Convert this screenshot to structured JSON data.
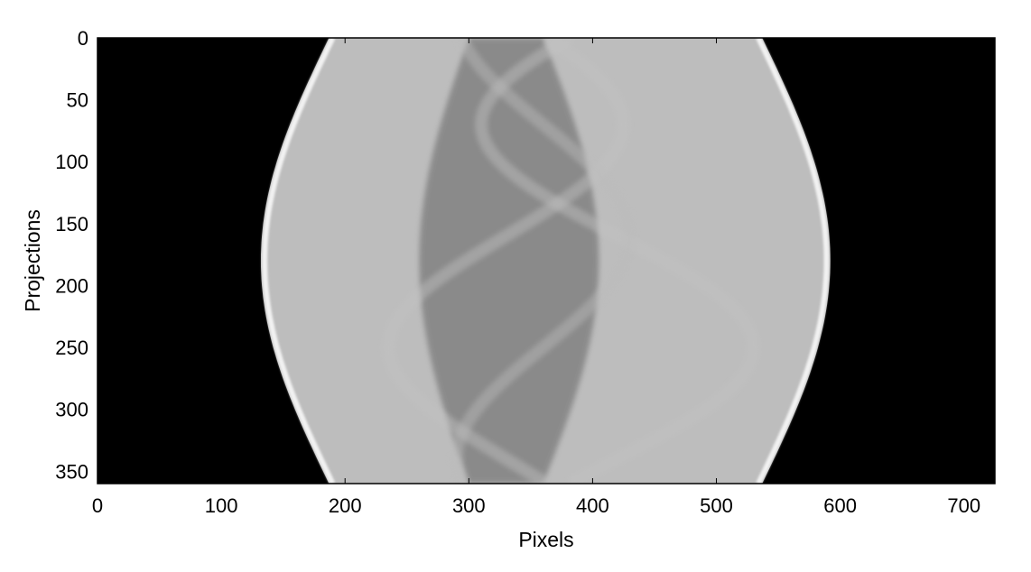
{
  "chart_data": {
    "type": "heatmap",
    "title": "",
    "xlabel": "Pixels",
    "ylabel": "Projections",
    "xlim": [
      0,
      725
    ],
    "ylim": [
      360,
      0
    ],
    "x_ticks": [
      0,
      100,
      200,
      300,
      400,
      500,
      600,
      700
    ],
    "y_ticks": [
      0,
      50,
      100,
      150,
      200,
      250,
      300,
      350
    ],
    "colormap": "grayscale",
    "grid": false,
    "background_color": "#000000",
    "sinogram_traces": [
      {
        "name": "outer-left-edge",
        "center": 362,
        "amplitude": 230,
        "phase_deg": 90,
        "brightness": 0.95
      },
      {
        "name": "outer-right-edge",
        "center": 362,
        "amplitude": 230,
        "phase_deg": -90,
        "brightness": 0.95
      },
      {
        "name": "inner-trace-1",
        "center": 330,
        "amplitude": 95,
        "phase_deg": 20,
        "brightness": 0.55
      },
      {
        "name": "inner-trace-2",
        "center": 420,
        "amplitude": 110,
        "phase_deg": 200,
        "brightness": 0.55
      },
      {
        "name": "inner-trace-3",
        "center": 360,
        "amplitude": 70,
        "phase_deg": 290,
        "brightness": 0.5
      }
    ]
  }
}
